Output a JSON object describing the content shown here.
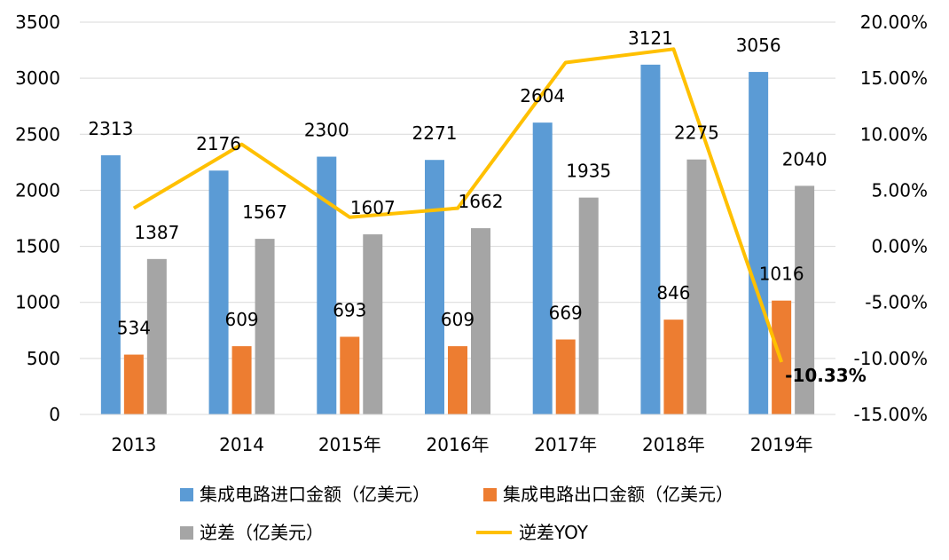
{
  "chart_data": {
    "type": "bar",
    "categories": [
      "2013",
      "2014",
      "2015年",
      "2016年",
      "2017年",
      "2018年",
      "2019年"
    ],
    "series": [
      {
        "name": "集成电路进口金额（亿美元）",
        "type": "bar",
        "axis": "left",
        "color": "#5B9BD5",
        "values": [
          2313,
          2176,
          2300,
          2271,
          2604,
          3121,
          3056
        ]
      },
      {
        "name": "集成电路出口金额（亿美元）",
        "type": "bar",
        "axis": "left",
        "color": "#ED7D31",
        "values": [
          534,
          609,
          693,
          609,
          669,
          846,
          1016
        ]
      },
      {
        "name": "逆差（亿美元）",
        "type": "bar",
        "axis": "left",
        "color": "#A5A5A5",
        "values": [
          1387,
          1567,
          1607,
          1662,
          1935,
          2275,
          2040
        ]
      },
      {
        "name": "逆差YOY",
        "type": "line",
        "axis": "right",
        "color": "#FFC000",
        "values": [
          3.4,
          9.1,
          2.6,
          3.4,
          16.4,
          17.6,
          -10.33
        ]
      }
    ],
    "left_axis": {
      "min": 0,
      "max": 3500,
      "ticks": [
        "0",
        "500",
        "1000",
        "1500",
        "2000",
        "2500",
        "3000",
        "3500"
      ]
    },
    "right_axis": {
      "min": -15,
      "max": 20,
      "ticks": [
        "-15.00%",
        "-10.00%",
        "-5.00%",
        "0.00%",
        "5.00%",
        "10.00%",
        "15.00%",
        "20.00%"
      ]
    },
    "highlight_label": "-10.33%",
    "gridlines": true,
    "legend_position": "bottom"
  }
}
